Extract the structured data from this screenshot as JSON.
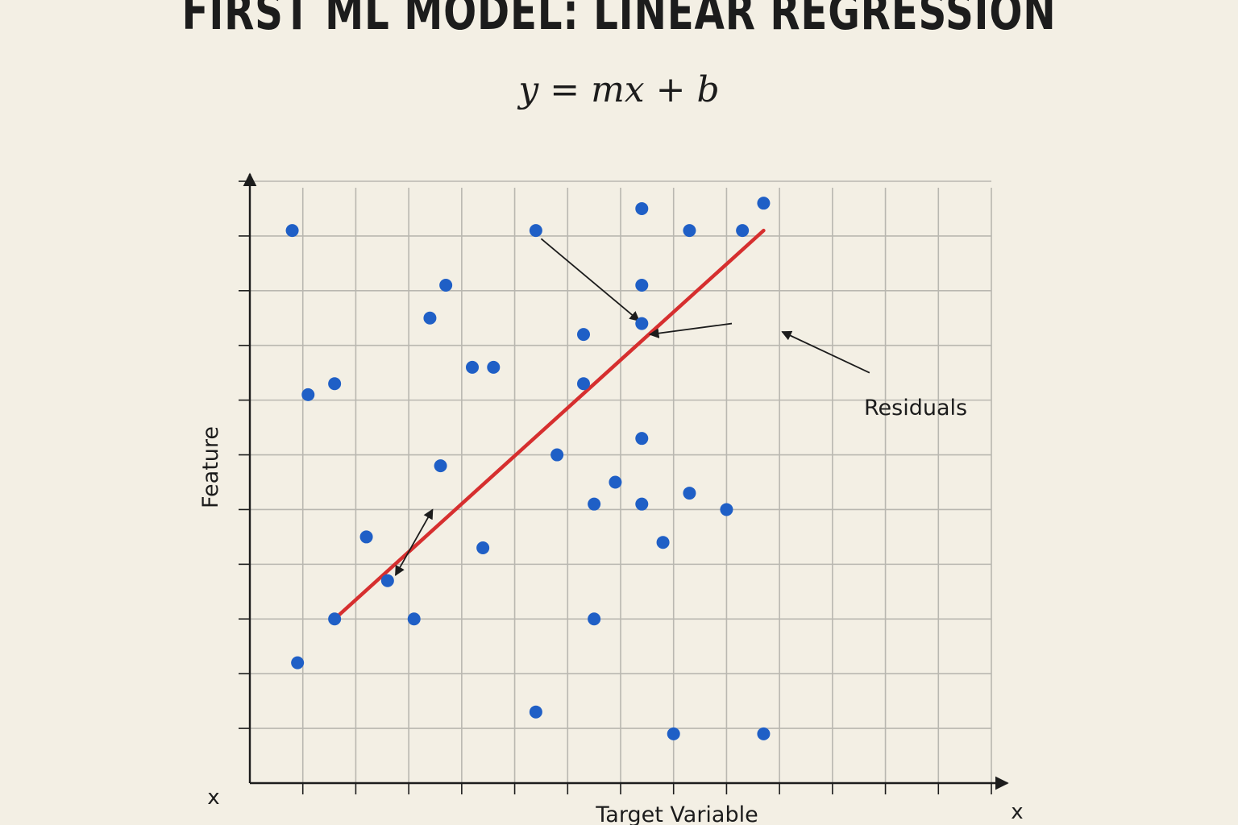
{
  "title": "FIRST ML MODEL: LINEAR REGRESSION",
  "equation": "y = mx + b",
  "chart_data": {
    "type": "scatter",
    "xlabel": "Target Variable",
    "ylabel": "Feature",
    "x_axis_end_label": "x",
    "origin_label": "x",
    "annotation": "Residuals",
    "grid": true,
    "xlim": [
      0,
      14
    ],
    "ylim": [
      0,
      11
    ],
    "colors": {
      "points": "#1f5fc6",
      "line": "#d62f2f",
      "grid": "#b9b7b0",
      "axis": "#1c1c1c"
    },
    "series": [
      {
        "points": [
          [
            0.8,
            10.1
          ],
          [
            3.7,
            9.1
          ],
          [
            5.4,
            10.1
          ],
          [
            6.3,
            8.2
          ],
          [
            4.6,
            7.6
          ],
          [
            7.4,
            10.5
          ],
          [
            7.4,
            9.1
          ],
          [
            7.4,
            8.4
          ],
          [
            7.4,
            6.3
          ],
          [
            7.4,
            5.1
          ],
          [
            1.1,
            7.1
          ],
          [
            1.6,
            7.3
          ],
          [
            3.4,
            8.5
          ],
          [
            4.2,
            7.6
          ],
          [
            6.3,
            7.3
          ],
          [
            8.3,
            10.1
          ],
          [
            9.3,
            10.1
          ],
          [
            9.7,
            10.6
          ],
          [
            8.3,
            5.3
          ],
          [
            9.0,
            5.0
          ],
          [
            6.9,
            5.5
          ],
          [
            6.5,
            5.1
          ],
          [
            5.8,
            6.0
          ],
          [
            3.6,
            5.8
          ],
          [
            2.2,
            4.5
          ],
          [
            4.4,
            4.3
          ],
          [
            7.8,
            4.4
          ],
          [
            3.1,
            3.0
          ],
          [
            6.5,
            3.0
          ],
          [
            0.9,
            2.2
          ],
          [
            1.6,
            3.0
          ],
          [
            5.4,
            1.3
          ],
          [
            8.0,
            0.9
          ],
          [
            9.7,
            0.9
          ],
          [
            2.6,
            3.7
          ]
        ]
      }
    ],
    "regression_line": {
      "x": [
        1.6,
        9.7
      ],
      "y": [
        3.0,
        10.1
      ]
    }
  }
}
